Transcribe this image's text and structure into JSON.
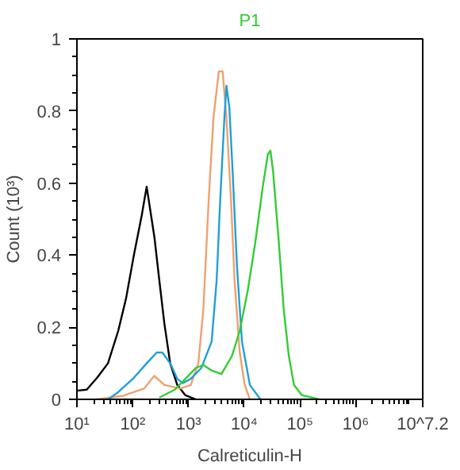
{
  "chart_data": {
    "type": "line",
    "title": "P1",
    "xlabel": "Calreticulin-H",
    "ylabel": "Count (10³)",
    "log": "x",
    "grid": false,
    "marker": "none",
    "line_style": "solid",
    "xlim": [
      10,
      15848932
    ],
    "ylim": [
      0,
      1
    ],
    "xticks": [
      {
        "value": 10,
        "label": "10¹"
      },
      {
        "value": 100,
        "label": "10²"
      },
      {
        "value": 1000,
        "label": "10³"
      },
      {
        "value": 10000,
        "label": "10⁴"
      },
      {
        "value": 100000,
        "label": "10⁵"
      },
      {
        "value": 1000000,
        "label": "10⁶"
      },
      {
        "value": 15848932,
        "label": "10^7.2"
      }
    ],
    "yticks": [
      0,
      0.2,
      0.4,
      0.6,
      0.8,
      1
    ],
    "series": [
      {
        "color": "#000000",
        "x": [
          10,
          15,
          23,
          36,
          55,
          76,
          105,
          145,
          178,
          245,
          300,
          370,
          470,
          630,
          870,
          1350
        ],
        "values": [
          0.024,
          0.027,
          0.06,
          0.1,
          0.19,
          0.28,
          0.4,
          0.51,
          0.59,
          0.45,
          0.33,
          0.21,
          0.1,
          0.04,
          0.012,
          0
        ]
      },
      {
        "color": "#f0a070",
        "x": [
          23,
          68,
          160,
          220,
          245,
          370,
          710,
          1100,
          1500,
          1850,
          2300,
          2800,
          3500,
          4100,
          4800,
          5800,
          6700,
          8300,
          10200,
          12600
        ],
        "values": [
          0,
          0.01,
          0.03,
          0.057,
          0.065,
          0.04,
          0.03,
          0.04,
          0.1,
          0.25,
          0.55,
          0.78,
          0.91,
          0.91,
          0.78,
          0.55,
          0.33,
          0.13,
          0.04,
          0
        ]
      },
      {
        "color": "#1ea0d8",
        "x": [
          36,
          55,
          105,
          178,
          270,
          340,
          470,
          630,
          790,
          1100,
          1700,
          2600,
          3200,
          3700,
          4400,
          4800,
          5400,
          6200,
          7400,
          9100,
          12600,
          19500
        ],
        "values": [
          0,
          0.02,
          0.06,
          0.1,
          0.13,
          0.13,
          0.1,
          0.057,
          0.045,
          0.057,
          0.087,
          0.16,
          0.33,
          0.55,
          0.78,
          0.87,
          0.81,
          0.63,
          0.37,
          0.16,
          0.04,
          0
        ]
      },
      {
        "color": "#33cc33",
        "x": [
          300,
          570,
          880,
          1350,
          1850,
          2600,
          3900,
          6000,
          8300,
          11500,
          15600,
          21500,
          26500,
          29500,
          33000,
          41000,
          51000,
          63000,
          78000,
          107000,
          220000
        ],
        "values": [
          0.005,
          0.027,
          0.057,
          0.087,
          0.095,
          0.08,
          0.07,
          0.12,
          0.19,
          0.3,
          0.43,
          0.59,
          0.68,
          0.69,
          0.63,
          0.45,
          0.25,
          0.12,
          0.04,
          0.012,
          0
        ]
      }
    ]
  }
}
